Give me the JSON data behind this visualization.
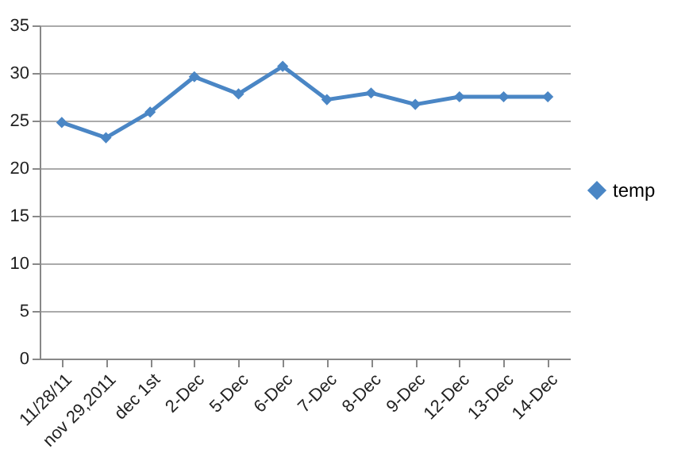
{
  "chart_data": {
    "type": "line",
    "categories": [
      "11/28/11",
      "nov 29,2011",
      "dec 1st",
      "2-Dec",
      "5-Dec",
      "6-Dec",
      "7-Dec",
      "8-Dec",
      "9-Dec",
      "12-Dec",
      "13-Dec",
      "14-Dec"
    ],
    "series": [
      {
        "name": "temp",
        "color": "#4a86c5",
        "values": [
          24.8,
          23.2,
          25.9,
          29.6,
          27.8,
          30.7,
          27.2,
          27.9,
          26.7,
          27.5,
          27.5,
          27.5
        ]
      }
    ],
    "ylim": [
      0,
      35
    ],
    "yticks": [
      0,
      5,
      10,
      15,
      20,
      25,
      30,
      35
    ],
    "grid": "y",
    "legend": "right",
    "marker": "diamond",
    "line_style": "solid"
  }
}
